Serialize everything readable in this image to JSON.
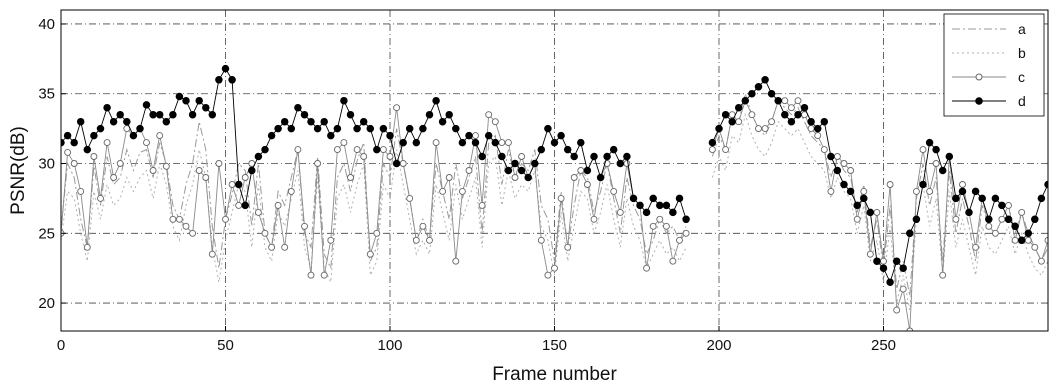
{
  "chart_data": {
    "type": "line",
    "title": "",
    "xlabel": "Frame number",
    "ylabel": "PSNR(dB)",
    "xlim": [
      0,
      300
    ],
    "ylim": [
      18,
      41
    ],
    "xticks": [
      0,
      50,
      100,
      150,
      200,
      250
    ],
    "yticks": [
      20,
      25,
      30,
      35,
      40
    ],
    "grid": true,
    "legend_position": "top-right",
    "x_start": 0,
    "x_step": 2,
    "gaps": [
      [
        192,
        198
      ]
    ],
    "series": [
      {
        "name": "a",
        "style": "dashdot",
        "marker": "none",
        "color": "#9a9a9a",
        "values": [
          25.3,
          30.0,
          29.0,
          26.0,
          24.0,
          29.8,
          27.0,
          30.5,
          28.5,
          29.0,
          31.0,
          29.5,
          30.8,
          31.0,
          29.0,
          31.5,
          30.0,
          27.0,
          26.0,
          28.5,
          30.0,
          33.0,
          31.0,
          25.5,
          22.5,
          26.0,
          27.8,
          30.0,
          29.5,
          25.5,
          30.0,
          25.0,
          24.0,
          28.0,
          27.0,
          29.0,
          31.0,
          25.0,
          24.0,
          30.5,
          23.5,
          22.5,
          29.0,
          30.0,
          28.0,
          30.2,
          31.5,
          23.0,
          24.0,
          30.0,
          29.0,
          32.5,
          30.0,
          27.5,
          24.5,
          26.0,
          24.5,
          30.0,
          28.0,
          26.0,
          30.0,
          27.5,
          29.0,
          30.5,
          25.0,
          31.5,
          32.0,
          28.5,
          31.0,
          29.0,
          30.0,
          29.5,
          31.0,
          27.0,
          26.0,
          23.0,
          28.0,
          24.0,
          27.0,
          29.5,
          29.0,
          26.5,
          28.0,
          30.0,
          27.5,
          25.0,
          29.0,
          27.0,
          26.0,
          23.5,
          24.5,
          26.0,
          25.0,
          25.5,
          24.5,
          25.5,
          null,
          null,
          null,
          30.5,
          32.0,
          31.0,
          33.5,
          33.0,
          35.0,
          33.5,
          32.5,
          32.0,
          33.0,
          34.5,
          34.0,
          33.5,
          34.0,
          33.0,
          32.0,
          31.5,
          31.0,
          29.0,
          30.5,
          29.5,
          29.0,
          26.5,
          28.5,
          24.0,
          26.0,
          22.5,
          27.0,
          21.0,
          23.0,
          20.5,
          27.5,
          30.0,
          27.0,
          29.0,
          23.0,
          29.5,
          25.0,
          27.5,
          25.5,
          23.0,
          27.0,
          25.5,
          25.0,
          26.0,
          27.0,
          25.0,
          26.5,
          25.0,
          24.0,
          23.0,
          24.0,
          25.0,
          26.0,
          27.0,
          26.5
        ]
      },
      {
        "name": "b",
        "style": "dotted",
        "marker": "none",
        "color": "#b0b0b0",
        "values": [
          24.5,
          28.0,
          27.5,
          25.0,
          23.0,
          28.0,
          26.0,
          28.5,
          27.0,
          27.5,
          29.0,
          28.0,
          29.0,
          29.5,
          27.5,
          30.0,
          28.5,
          25.5,
          24.5,
          27.0,
          28.5,
          31.0,
          29.0,
          24.0,
          21.5,
          24.5,
          26.5,
          28.5,
          28.0,
          24.0,
          28.5,
          24.0,
          23.0,
          26.5,
          25.5,
          27.5,
          29.5,
          24.0,
          22.5,
          29.0,
          22.5,
          21.5,
          27.5,
          28.5,
          26.5,
          28.5,
          30.0,
          22.0,
          23.0,
          28.5,
          27.5,
          31.0,
          28.5,
          26.0,
          23.5,
          24.5,
          23.5,
          28.5,
          26.5,
          24.5,
          28.5,
          26.0,
          27.5,
          29.0,
          24.0,
          30.0,
          30.5,
          27.0,
          29.5,
          27.5,
          28.5,
          28.0,
          29.5,
          25.5,
          24.5,
          22.0,
          26.5,
          23.0,
          25.5,
          28.0,
          27.5,
          25.0,
          26.5,
          28.5,
          26.0,
          24.0,
          27.5,
          25.5,
          24.5,
          22.5,
          23.5,
          24.5,
          23.5,
          24.0,
          23.0,
          24.0,
          null,
          null,
          null,
          29.0,
          30.5,
          29.5,
          32.0,
          31.5,
          33.5,
          32.0,
          31.0,
          30.5,
          31.5,
          33.0,
          32.5,
          32.0,
          32.5,
          31.5,
          30.5,
          30.0,
          29.5,
          27.5,
          29.0,
          28.0,
          27.5,
          25.0,
          27.0,
          23.0,
          24.5,
          21.5,
          25.5,
          20.0,
          22.0,
          19.5,
          26.0,
          28.5,
          25.5,
          27.5,
          22.0,
          28.0,
          24.0,
          26.0,
          24.0,
          22.0,
          25.5,
          24.0,
          23.5,
          24.5,
          25.5,
          23.5,
          25.0,
          23.5,
          22.5,
          22.0,
          23.0,
          24.0,
          24.5,
          25.5,
          25.0
        ]
      },
      {
        "name": "c",
        "style": "solid",
        "marker": "open-circle",
        "color": "#8a8a8a",
        "values": [
          25.0,
          30.8,
          30.0,
          28.0,
          24.0,
          30.5,
          27.5,
          31.5,
          29.0,
          30.0,
          32.5,
          32.0,
          32.5,
          31.5,
          29.5,
          32.0,
          29.8,
          26.0,
          26.0,
          25.5,
          25.0,
          29.5,
          29.0,
          23.5,
          30.0,
          26.0,
          28.5,
          27.0,
          29.0,
          30.0,
          26.5,
          25.0,
          24.0,
          27.0,
          24.0,
          28.0,
          31.0,
          25.5,
          22.0,
          30.0,
          22.0,
          24.5,
          31.0,
          31.5,
          29.0,
          31.0,
          30.5,
          23.5,
          25.0,
          31.0,
          30.5,
          34.0,
          30.0,
          27.5,
          24.5,
          25.5,
          24.5,
          31.5,
          28.0,
          29.0,
          23.0,
          28.0,
          29.5,
          32.0,
          27.0,
          33.5,
          33.0,
          31.5,
          31.5,
          29.0,
          30.5,
          29.0,
          30.0,
          24.5,
          22.0,
          22.5,
          27.5,
          24.0,
          29.0,
          29.5,
          28.5,
          26.0,
          29.0,
          30.0,
          28.0,
          26.5,
          30.0,
          27.5,
          27.0,
          22.5,
          25.5,
          26.0,
          25.5,
          23.0,
          24.5,
          25.0,
          null,
          null,
          null,
          31.0,
          32.5,
          31.0,
          33.5,
          33.0,
          34.5,
          33.5,
          32.5,
          32.5,
          33.0,
          34.5,
          34.5,
          34.0,
          34.5,
          33.5,
          32.5,
          32.0,
          31.0,
          28.0,
          30.5,
          30.0,
          29.5,
          26.0,
          28.0,
          23.5,
          26.5,
          23.0,
          28.5,
          19.5,
          21.0,
          18.0,
          28.0,
          31.0,
          28.0,
          30.0,
          22.0,
          30.5,
          26.0,
          28.5,
          26.5,
          24.0,
          27.5,
          25.5,
          25.0,
          26.0,
          27.0,
          24.5,
          26.5,
          24.5,
          24.0,
          23.0,
          24.5,
          25.0,
          26.0,
          27.0,
          26.5
        ]
      },
      {
        "name": "d",
        "style": "solid",
        "marker": "filled-circle",
        "color": "#000000",
        "values": [
          31.5,
          32.0,
          31.5,
          33.0,
          31.0,
          32.0,
          32.5,
          34.0,
          33.0,
          33.5,
          33.0,
          32.0,
          32.5,
          34.2,
          33.5,
          33.5,
          33.0,
          33.5,
          34.8,
          34.5,
          33.5,
          34.5,
          34.0,
          33.5,
          36.0,
          36.8,
          36.0,
          28.5,
          27.0,
          29.5,
          30.5,
          31.0,
          32.0,
          32.5,
          33.0,
          32.5,
          34.0,
          33.5,
          33.0,
          32.5,
          33.0,
          32.0,
          32.5,
          34.5,
          33.5,
          32.5,
          33.0,
          32.5,
          31.0,
          32.5,
          32.0,
          30.0,
          31.5,
          32.5,
          31.5,
          32.5,
          33.5,
          34.5,
          33.0,
          33.5,
          32.5,
          31.5,
          32.0,
          31.5,
          30.5,
          32.0,
          31.5,
          30.5,
          29.5,
          30.0,
          29.5,
          29.0,
          30.0,
          31.0,
          32.5,
          31.5,
          32.0,
          31.0,
          30.5,
          31.5,
          29.5,
          30.5,
          29.0,
          30.5,
          31.0,
          30.0,
          30.5,
          27.5,
          27.0,
          26.5,
          27.5,
          27.0,
          27.0,
          26.5,
          27.5,
          26.0,
          null,
          null,
          null,
          31.5,
          32.5,
          33.5,
          33.0,
          34.0,
          34.5,
          35.0,
          35.5,
          36.0,
          35.0,
          34.5,
          33.5,
          33.0,
          33.5,
          34.0,
          33.0,
          32.5,
          33.0,
          30.5,
          29.5,
          28.5,
          28.0,
          27.0,
          27.5,
          26.5,
          23.0,
          22.5,
          21.5,
          23.0,
          22.5,
          25.0,
          26.0,
          28.5,
          31.5,
          31.0,
          29.5,
          30.5,
          27.5,
          28.0,
          26.5,
          28.0,
          27.5,
          26.0,
          27.5,
          27.0,
          26.0,
          25.5,
          24.5,
          25.0,
          26.0,
          27.5,
          28.5,
          29.0,
          27.0,
          28.0
        ]
      }
    ]
  }
}
